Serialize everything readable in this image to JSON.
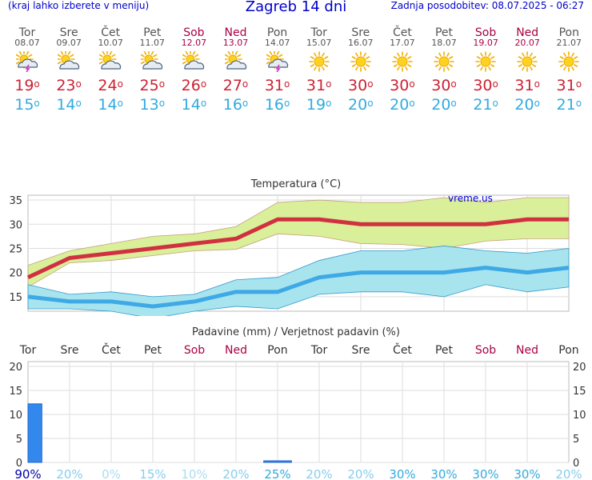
{
  "header": {
    "menu_hint": "(kraj lahko izberete v meniju)",
    "title": "Zagreb 14 dni",
    "updated": "Zadnja posodobitev: 08.07.2025 - 06:27"
  },
  "colors": {
    "weekday": "#555555",
    "weekend": "#aa0044",
    "tmax": "#cc2233",
    "tmin": "#33aadd",
    "max_band": "#d9ef9a",
    "min_band": "#a8e4ee",
    "precip_bar": "#3388ee",
    "header_blue": "#0000cc"
  },
  "days": [
    {
      "name": "Tor",
      "date": "08.07",
      "weekend": false,
      "icon": "thunder-sun-cloud-icon",
      "tmax": "19",
      "tmin": "15"
    },
    {
      "name": "Sre",
      "date": "09.07",
      "weekend": false,
      "icon": "partly-cloudy-icon",
      "tmax": "23",
      "tmin": "14"
    },
    {
      "name": "Čet",
      "date": "10.07",
      "weekend": false,
      "icon": "partly-cloudy-icon",
      "tmax": "24",
      "tmin": "14"
    },
    {
      "name": "Pet",
      "date": "11.07",
      "weekend": false,
      "icon": "partly-cloudy-icon",
      "tmax": "25",
      "tmin": "13"
    },
    {
      "name": "Sob",
      "date": "12.07",
      "weekend": true,
      "icon": "partly-cloudy-icon",
      "tmax": "26",
      "tmin": "14"
    },
    {
      "name": "Ned",
      "date": "13.07",
      "weekend": true,
      "icon": "partly-cloudy-icon",
      "tmax": "27",
      "tmin": "16"
    },
    {
      "name": "Pon",
      "date": "14.07",
      "weekend": false,
      "icon": "thunder-sun-cloud-icon",
      "tmax": "31",
      "tmin": "16"
    },
    {
      "name": "Tor",
      "date": "15.07",
      "weekend": false,
      "icon": "sun-icon",
      "tmax": "31",
      "tmin": "19"
    },
    {
      "name": "Sre",
      "date": "16.07",
      "weekend": false,
      "icon": "sun-icon",
      "tmax": "30",
      "tmin": "20"
    },
    {
      "name": "Čet",
      "date": "17.07",
      "weekend": false,
      "icon": "sun-icon",
      "tmax": "30",
      "tmin": "20"
    },
    {
      "name": "Pet",
      "date": "18.07",
      "weekend": false,
      "icon": "sun-icon",
      "tmax": "30",
      "tmin": "20"
    },
    {
      "name": "Sob",
      "date": "19.07",
      "weekend": true,
      "icon": "sun-icon",
      "tmax": "30",
      "tmin": "21"
    },
    {
      "name": "Ned",
      "date": "20.07",
      "weekend": true,
      "icon": "sun-icon",
      "tmax": "31",
      "tmin": "20"
    },
    {
      "name": "Pon",
      "date": "21.07",
      "weekend": false,
      "icon": "sun-icon",
      "tmax": "31",
      "tmin": "21"
    }
  ],
  "chart_data": [
    {
      "type": "line",
      "title": "Temperatura (°C)",
      "watermark": "vreme.us",
      "ylim": [
        12,
        36
      ],
      "yticks": [
        15,
        20,
        25,
        30,
        35
      ],
      "grid": true,
      "series": [
        {
          "name": "max",
          "values": [
            19,
            23,
            24,
            25,
            26,
            27,
            31,
            31,
            30,
            30,
            30,
            30,
            31,
            31
          ]
        },
        {
          "name": "max_range_high",
          "values": [
            21.5,
            24.5,
            26,
            27.5,
            28,
            29.5,
            34.5,
            35,
            34.5,
            34.5,
            35.5,
            34.5,
            35.5,
            35.5
          ]
        },
        {
          "name": "max_range_low",
          "values": [
            17,
            22,
            22.5,
            23.5,
            24.5,
            24.8,
            28,
            27.5,
            26,
            25.8,
            25,
            26.5,
            27,
            27
          ]
        },
        {
          "name": "min",
          "values": [
            15,
            14,
            14,
            13,
            14,
            16,
            16,
            19,
            20,
            20,
            20,
            21,
            20,
            21
          ]
        },
        {
          "name": "min_range_high",
          "values": [
            17.5,
            15.5,
            16,
            15,
            15.5,
            18.5,
            19,
            22.5,
            24.5,
            24.5,
            25.5,
            24.5,
            24,
            25
          ]
        },
        {
          "name": "min_range_low",
          "values": [
            12.5,
            12.5,
            12,
            10.5,
            12,
            13,
            12.5,
            15.5,
            16,
            16,
            15,
            17.5,
            16,
            17
          ]
        }
      ]
    },
    {
      "type": "bar",
      "title": "Padavine (mm) / Verjetnost padavin (%)",
      "ylim": [
        0,
        21
      ],
      "yticks": [
        0,
        5,
        10,
        15,
        20
      ],
      "grid": true,
      "categories": [
        "Tor",
        "Sre",
        "Čet",
        "Pet",
        "Sob",
        "Ned",
        "Pon",
        "Tor",
        "Sre",
        "Čet",
        "Pet",
        "Sob",
        "Ned",
        "Pon"
      ],
      "values": [
        12.2,
        0,
        0,
        0,
        0,
        0,
        0.3,
        0,
        0,
        0,
        0,
        0,
        0,
        0
      ],
      "probability": [
        "90%",
        "20%",
        "0%",
        "15%",
        "10%",
        "20%",
        "25%",
        "20%",
        "20%",
        "30%",
        "30%",
        "30%",
        "30%",
        "20%"
      ],
      "probability_colors": [
        "#0000aa",
        "#88ccee",
        "#aaddf0",
        "#88ccee",
        "#aaddf0",
        "#88ccee",
        "#33aadd",
        "#88ccee",
        "#88ccee",
        "#33aadd",
        "#33aadd",
        "#33aadd",
        "#33aadd",
        "#88ccee"
      ]
    }
  ]
}
